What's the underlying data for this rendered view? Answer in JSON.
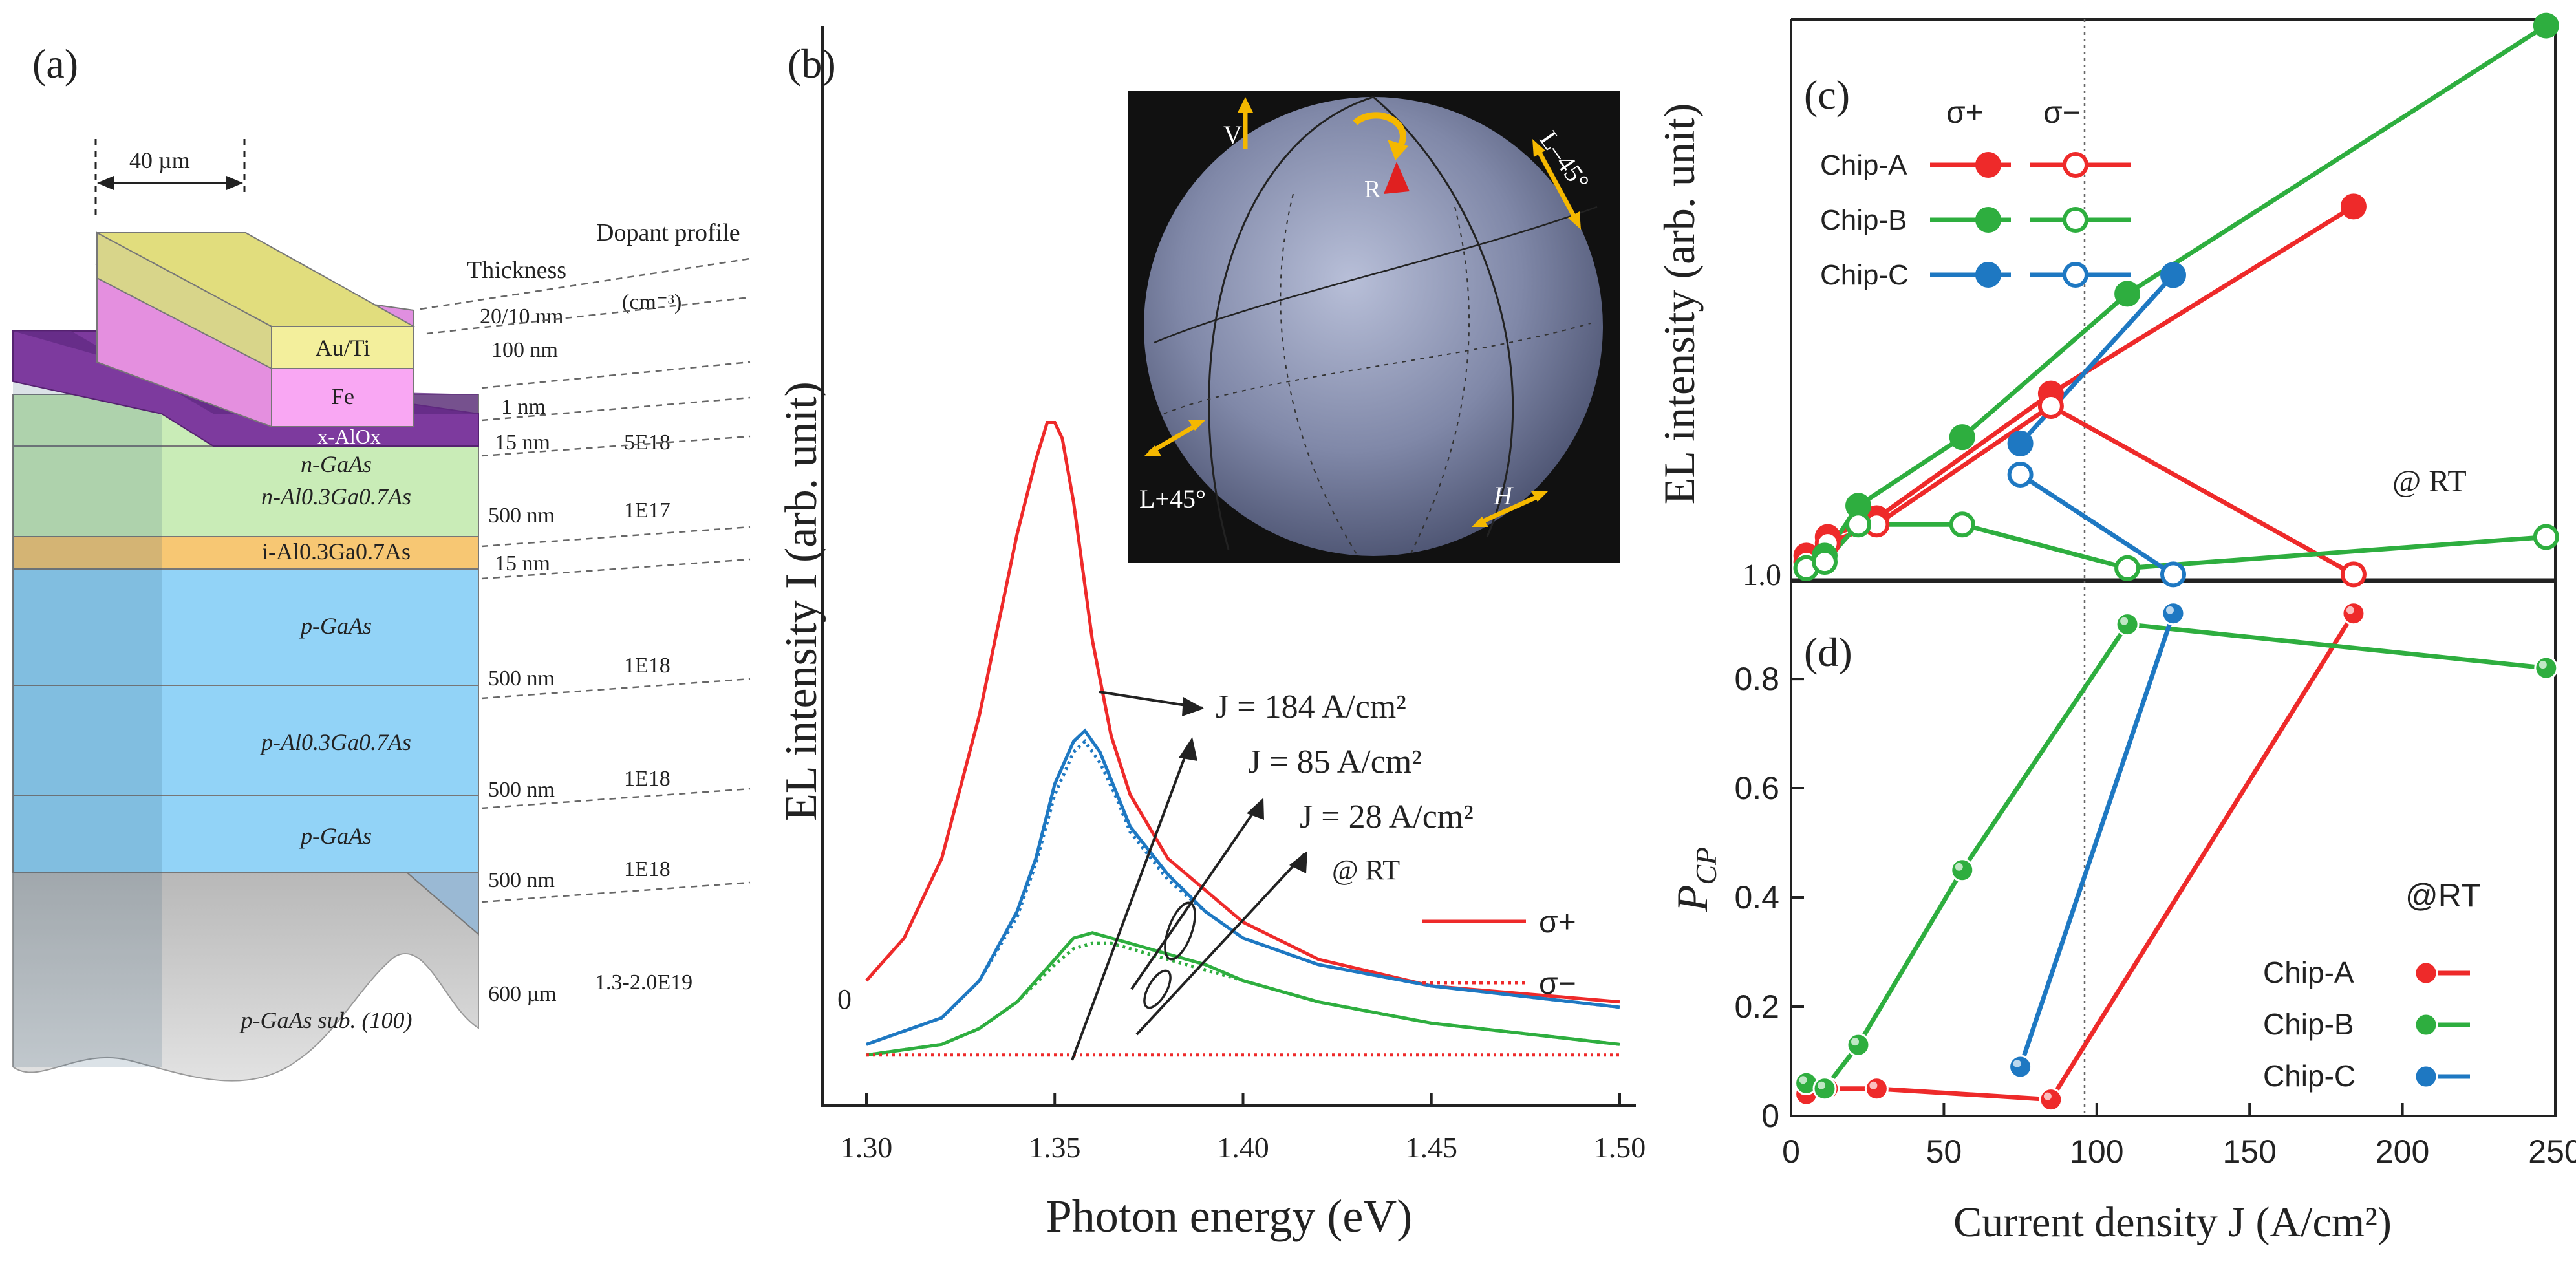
{
  "panels": {
    "a": {
      "label": "(a)",
      "width_label": "40 µm",
      "header_thickness": "Thickness",
      "header_dopant": "Dopant profile",
      "header_unit_thick": "20/10 nm",
      "header_unit_dopant": "(cm⁻³)",
      "layers": [
        {
          "name": "Au/Ti",
          "thickness": "",
          "dopant": "",
          "color": "#f3ef9c"
        },
        {
          "name": "Fe",
          "thickness": "100 nm",
          "dopant": "",
          "color": "#f9a7f3"
        },
        {
          "name": "x-AlOx",
          "thickness": "1 nm",
          "dopant": "",
          "color": "#7d3a9e"
        },
        {
          "name": "n-GaAs",
          "thickness": "15 nm",
          "dopant": "5E18",
          "color": "#c9ecb7"
        },
        {
          "name": "n-Al0.3Ga0.7As",
          "thickness": "500 nm",
          "dopant": "1E17",
          "color": "#c9ecb7"
        },
        {
          "name": "i-Al0.3Ga0.7As",
          "thickness": "15 nm",
          "dopant": "",
          "color": "#f7c773"
        },
        {
          "name": "p-GaAs",
          "thickness": "500 nm",
          "dopant": "1E18",
          "color": "#92d3f7"
        },
        {
          "name": "p-Al0.3Ga0.7As",
          "thickness": "500 nm",
          "dopant": "1E18",
          "color": "#92d3f7"
        },
        {
          "name": "p-GaAs",
          "thickness": "500 nm",
          "dopant": "1E18",
          "color": "#92d3f7"
        },
        {
          "name": "p-GaAs sub. (100)",
          "thickness": "600 µm",
          "dopant": "1.3-2.0E19",
          "color": "#c4c4c4"
        }
      ]
    },
    "b": {
      "label": "(b)",
      "sphere_labels": {
        "v": "V",
        "r": "R",
        "l_minus": "L–45°",
        "l_plus": "L+45°",
        "h": "H"
      },
      "annotations": [
        "J = 184 A/cm²",
        "J = 85 A/cm²",
        "J = 28 A/cm²",
        "@ RT"
      ],
      "legend": [
        "σ+",
        "σ−"
      ]
    },
    "c": {
      "label": "(c)",
      "legend_header_plus": "σ+",
      "legend_header_minus": "σ−",
      "legend_chips": [
        "Chip-A",
        "Chip-B",
        "Chip-C"
      ],
      "rt_label": "@ RT"
    },
    "d": {
      "label": "(d)",
      "rt_label": "@RT",
      "legend_chips": [
        "Chip-A",
        "Chip-B",
        "Chip-C"
      ]
    }
  },
  "colors": {
    "chip_a": "#ee2a2a",
    "chip_b": "#2eae3f",
    "chip_c": "#1e78c2",
    "sphere": "#8088a8"
  },
  "chart_data": [
    {
      "panel": "b",
      "type": "line",
      "title": "",
      "xlabel": "Photon energy (eV)",
      "ylabel": "EL intensity I (arb. unit)",
      "xlim": [
        1.3,
        1.5
      ],
      "ylim": [
        -0.13,
        1.5
      ],
      "xticks": [
        "1.30",
        "1.35",
        "1.40",
        "1.45",
        "1.50"
      ],
      "yticks": [
        "0"
      ],
      "series": [
        {
          "name": "J = 184 A/cm² σ+",
          "color": "#ee2a2a",
          "style": "solid",
          "x": [
            1.3,
            1.31,
            1.32,
            1.33,
            1.34,
            1.345,
            1.348,
            1.35,
            1.352,
            1.355,
            1.36,
            1.365,
            1.37,
            1.38,
            1.39,
            1.4,
            1.42,
            1.45,
            1.5
          ],
          "y": [
            0.02,
            0.1,
            0.25,
            0.52,
            0.86,
            1.0,
            1.07,
            1.07,
            1.04,
            0.92,
            0.66,
            0.48,
            0.37,
            0.25,
            0.19,
            0.13,
            0.06,
            0.01,
            -0.02
          ]
        },
        {
          "name": "J = 85 A/cm² σ+",
          "color": "#1e78c2",
          "style": "solid",
          "x": [
            1.3,
            1.32,
            1.33,
            1.34,
            1.345,
            1.35,
            1.355,
            1.358,
            1.362,
            1.366,
            1.37,
            1.38,
            1.39,
            1.4,
            1.42,
            1.45,
            1.5
          ],
          "y": [
            -0.1,
            -0.05,
            0.02,
            0.15,
            0.25,
            0.39,
            0.47,
            0.49,
            0.45,
            0.38,
            0.31,
            0.22,
            0.15,
            0.1,
            0.05,
            0.01,
            -0.03
          ]
        },
        {
          "name": "J = 85 A/cm² σ−",
          "color": "#1e78c2",
          "style": "dotted",
          "x": [
            1.3,
            1.32,
            1.33,
            1.34,
            1.345,
            1.35,
            1.355,
            1.358,
            1.362,
            1.366,
            1.37,
            1.38,
            1.39,
            1.4,
            1.42,
            1.45,
            1.5
          ],
          "y": [
            -0.1,
            -0.05,
            0.02,
            0.14,
            0.24,
            0.37,
            0.45,
            0.47,
            0.43,
            0.37,
            0.3,
            0.21,
            0.15,
            0.1,
            0.05,
            0.01,
            -0.03
          ]
        },
        {
          "name": "J = 28 A/cm² σ+",
          "color": "#2eae3f",
          "style": "solid",
          "x": [
            1.3,
            1.32,
            1.33,
            1.34,
            1.35,
            1.355,
            1.36,
            1.365,
            1.37,
            1.38,
            1.39,
            1.4,
            1.42,
            1.45,
            1.5
          ],
          "y": [
            -0.12,
            -0.1,
            -0.07,
            -0.02,
            0.06,
            0.1,
            0.11,
            0.1,
            0.09,
            0.07,
            0.05,
            0.02,
            -0.02,
            -0.06,
            -0.1
          ]
        },
        {
          "name": "J = 28 A/cm² σ−",
          "color": "#2eae3f",
          "style": "dotted",
          "x": [
            1.3,
            1.32,
            1.33,
            1.34,
            1.35,
            1.355,
            1.36,
            1.365,
            1.37,
            1.38,
            1.39,
            1.4,
            1.42,
            1.45,
            1.5
          ],
          "y": [
            -0.12,
            -0.1,
            -0.07,
            -0.02,
            0.05,
            0.08,
            0.09,
            0.09,
            0.08,
            0.06,
            0.04,
            0.02,
            -0.02,
            -0.06,
            -0.1
          ]
        },
        {
          "name": "σ−",
          "color": "#ee2a2a",
          "style": "dotted",
          "x": [
            1.3,
            1.5
          ],
          "y": [
            -0.12,
            -0.12
          ]
        }
      ]
    },
    {
      "panel": "c",
      "type": "line",
      "xlabel": "",
      "ylabel": "EL intensity (arb. unit)",
      "xlim": [
        0,
        250
      ],
      "ylim": [
        1.0,
        1.9
      ],
      "yticks": [
        "1.0"
      ],
      "series": [
        {
          "name": "Chip-A σ+",
          "color": "#ee2a2a",
          "marker": "filled",
          "x": [
            5,
            12,
            28,
            85,
            184
          ],
          "y": [
            1.04,
            1.07,
            1.1,
            1.3,
            1.6
          ]
        },
        {
          "name": "Chip-A σ−",
          "color": "#ee2a2a",
          "marker": "open",
          "x": [
            5,
            12,
            28,
            85,
            184
          ],
          "y": [
            1.03,
            1.06,
            1.09,
            1.28,
            1.01
          ]
        },
        {
          "name": "Chip-B σ+",
          "color": "#2eae3f",
          "marker": "filled",
          "x": [
            5,
            11,
            22,
            56,
            110,
            247
          ],
          "y": [
            1.02,
            1.04,
            1.12,
            1.23,
            1.46,
            1.89
          ]
        },
        {
          "name": "Chip-B σ−",
          "color": "#2eae3f",
          "marker": "open",
          "x": [
            5,
            11,
            22,
            56,
            110,
            247
          ],
          "y": [
            1.02,
            1.03,
            1.09,
            1.09,
            1.02,
            1.07
          ]
        },
        {
          "name": "Chip-C σ+",
          "color": "#1e78c2",
          "marker": "filled",
          "x": [
            75,
            125
          ],
          "y": [
            1.22,
            1.49
          ]
        },
        {
          "name": "Chip-C σ−",
          "color": "#1e78c2",
          "marker": "open",
          "x": [
            75,
            125
          ],
          "y": [
            1.17,
            1.01
          ]
        }
      ]
    },
    {
      "panel": "d",
      "type": "line",
      "xlabel": "Current density J (A/cm²)",
      "ylabel": "P_CP",
      "xlim": [
        0,
        250
      ],
      "ylim": [
        0,
        0.98
      ],
      "xticks": [
        "0",
        "50",
        "100",
        "150",
        "200",
        "250"
      ],
      "yticks": [
        "0",
        "0.2",
        "0.4",
        "0.6",
        "0.8"
      ],
      "series": [
        {
          "name": "Chip-A",
          "color": "#ee2a2a",
          "x": [
            5,
            12,
            28,
            85,
            184
          ],
          "y": [
            0.04,
            0.05,
            0.05,
            0.03,
            0.92
          ]
        },
        {
          "name": "Chip-B",
          "color": "#2eae3f",
          "x": [
            5,
            11,
            22,
            56,
            110,
            247
          ],
          "y": [
            0.06,
            0.05,
            0.13,
            0.45,
            0.9,
            0.82
          ]
        },
        {
          "name": "Chip-C",
          "color": "#1e78c2",
          "x": [
            75,
            125
          ],
          "y": [
            0.09,
            0.92
          ]
        }
      ],
      "reference_line_x": 100
    }
  ]
}
